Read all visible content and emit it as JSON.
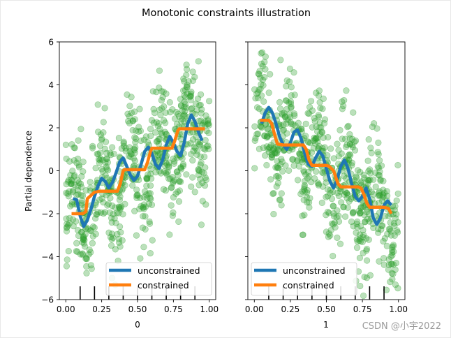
{
  "watermark": "CSDN @小宇2022",
  "colors": {
    "scatter": "#2ca02c",
    "unconstrained": "#1f77b4",
    "constrained": "#ff7f0e",
    "axes": "#000000"
  },
  "chart_data": {
    "title": "Monotonic constraints illustration",
    "type": "line",
    "ylabel": "Partial dependence",
    "ylim": [
      -6,
      6
    ],
    "yticks": [
      "6",
      "4",
      "2",
      "0",
      "−2",
      "−4",
      "−6"
    ],
    "legend": {
      "placement": "bottom-left",
      "entries": [
        "unconstrained",
        "constrained"
      ]
    },
    "panels": [
      {
        "xlabel": "0",
        "xlim": [
          -0.045,
          1.045
        ],
        "xticks": [
          "0.00",
          "0.25",
          "0.50",
          "0.75",
          "1.00"
        ],
        "scatter_trend": "increasing",
        "rug_deciles": [
          0.1,
          0.2,
          0.3,
          0.4,
          0.5,
          0.6,
          0.7,
          0.8,
          0.9
        ],
        "series": [
          {
            "name": "unconstrained",
            "x": [
              0.05,
              0.075,
              0.1,
              0.125,
              0.15,
              0.175,
              0.2,
              0.225,
              0.25,
              0.275,
              0.3,
              0.325,
              0.35,
              0.375,
              0.4,
              0.425,
              0.45,
              0.475,
              0.5,
              0.525,
              0.55,
              0.575,
              0.6,
              0.625,
              0.65,
              0.675,
              0.7,
              0.725,
              0.75,
              0.775,
              0.8,
              0.825,
              0.85,
              0.875,
              0.9,
              0.925,
              0.95
            ],
            "y": [
              -1.3,
              -1.35,
              -2.1,
              -2.6,
              -2.3,
              -1.8,
              -1.2,
              -0.7,
              -0.35,
              -0.5,
              -0.8,
              -0.55,
              -0.1,
              0.4,
              0.6,
              0.2,
              -0.2,
              -0.45,
              -0.25,
              0.3,
              0.9,
              1.1,
              0.8,
              0.3,
              0.1,
              0.5,
              1.2,
              1.6,
              1.3,
              0.9,
              0.7,
              1.3,
              2.2,
              2.6,
              2.3,
              1.8,
              1.4
            ]
          },
          {
            "name": "constrained",
            "x": [
              0.04,
              0.08,
              0.12,
              0.14,
              0.15,
              0.2,
              0.24,
              0.26,
              0.27,
              0.36,
              0.38,
              0.4,
              0.41,
              0.55,
              0.57,
              0.59,
              0.6,
              0.74,
              0.76,
              0.78,
              0.79,
              0.97
            ],
            "y": [
              -2.0,
              -2.0,
              -2.0,
              -1.9,
              -1.3,
              -1.0,
              -0.95,
              -0.95,
              -0.95,
              -0.95,
              -0.6,
              0.0,
              0.05,
              0.05,
              0.4,
              0.9,
              1.05,
              1.05,
              1.4,
              1.85,
              1.95,
              1.95
            ]
          }
        ]
      },
      {
        "xlabel": "1",
        "xlim": [
          -0.045,
          1.045
        ],
        "xticks": [
          "0.00",
          "0.25",
          "0.50",
          "0.75",
          "1.00"
        ],
        "scatter_trend": "decreasing",
        "rug_deciles": [
          0.1,
          0.2,
          0.3,
          0.4,
          0.5,
          0.6,
          0.7,
          0.8,
          0.9
        ],
        "series": [
          {
            "name": "unconstrained",
            "x": [
              0.05,
              0.075,
              0.1,
              0.125,
              0.15,
              0.175,
              0.2,
              0.225,
              0.25,
              0.275,
              0.3,
              0.325,
              0.35,
              0.375,
              0.4,
              0.425,
              0.45,
              0.475,
              0.5,
              0.525,
              0.55,
              0.575,
              0.6,
              0.625,
              0.65,
              0.675,
              0.7,
              0.725,
              0.75,
              0.775,
              0.8,
              0.825,
              0.85,
              0.875,
              0.9,
              0.925,
              0.95
            ],
            "y": [
              2.2,
              2.7,
              2.95,
              2.7,
              2.2,
              1.6,
              1.2,
              1.0,
              1.3,
              1.8,
              1.9,
              1.5,
              0.8,
              0.3,
              0.2,
              0.6,
              0.9,
              0.7,
              0.1,
              -0.5,
              -0.8,
              -0.4,
              0.2,
              0.5,
              0.1,
              -0.6,
              -1.2,
              -1.4,
              -1.2,
              -0.8,
              -1.3,
              -2.2,
              -2.5,
              -2.2,
              -1.6,
              -1.4,
              -1.6
            ]
          },
          {
            "name": "constrained",
            "x": [
              0.04,
              0.08,
              0.1,
              0.12,
              0.14,
              0.16,
              0.2,
              0.3,
              0.34,
              0.36,
              0.38,
              0.4,
              0.42,
              0.5,
              0.52,
              0.55,
              0.58,
              0.6,
              0.72,
              0.74,
              0.76,
              0.78,
              0.8,
              0.9,
              0.93,
              0.95
            ],
            "y": [
              2.35,
              2.35,
              2.35,
              2.2,
              1.7,
              1.25,
              1.2,
              1.2,
              1.2,
              1.0,
              0.5,
              0.25,
              0.25,
              0.25,
              0.2,
              0.0,
              -0.6,
              -0.75,
              -0.75,
              -0.8,
              -1.1,
              -1.5,
              -1.7,
              -1.7,
              -1.75,
              -2.0
            ]
          }
        ]
      }
    ]
  }
}
